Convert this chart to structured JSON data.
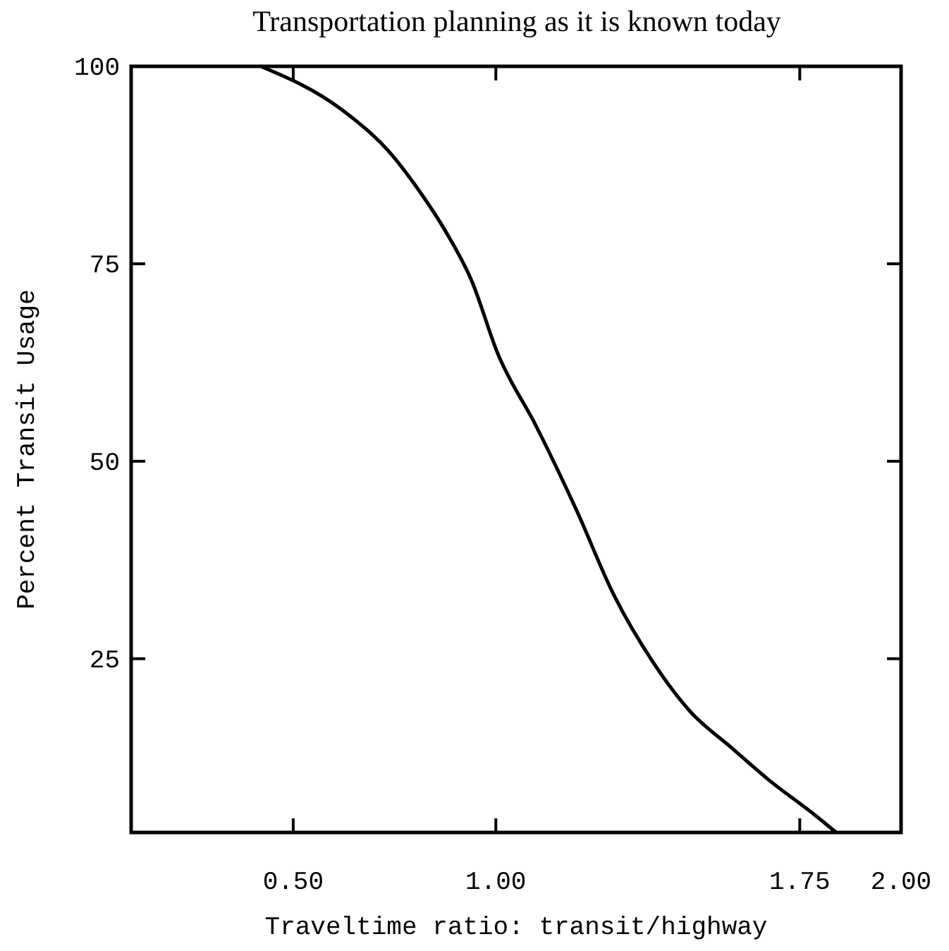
{
  "chart_data": {
    "type": "line",
    "xlabel": "Traveltime ratio:  transit/highway",
    "ylabel": "Percent Transit Usage",
    "annotations": [
      "Transportation planning as it is known today"
    ],
    "x": [
      0.42,
      0.62,
      0.745,
      0.81,
      0.875,
      0.94,
      1.005,
      1.1,
      1.2,
      1.29,
      1.39,
      1.48,
      1.58,
      1.67,
      1.79,
      1.84
    ],
    "series": [
      {
        "color": "#000000",
        "values": [
          100,
          94.5,
          88.7,
          84.3,
          79.2,
          72.9,
          63.6,
          54.4,
          43.7,
          33.2,
          24.4,
          18.3,
          13.8,
          9.8,
          5.1,
          3
        ]
      }
    ],
    "xlim": [
      0.1,
      2.0
    ],
    "xticks": [
      {
        "value": 0.5,
        "label": "0.50"
      },
      {
        "value": 1,
        "label": "1.00"
      },
      1.75,
      {
        "value": 2,
        "label": "2.00"
      }
    ],
    "ylim": [
      3,
      100
    ],
    "yticks": [
      25,
      50,
      75,
      100
    ],
    "grid": false,
    "marker": "none",
    "line_style": "solid"
  }
}
